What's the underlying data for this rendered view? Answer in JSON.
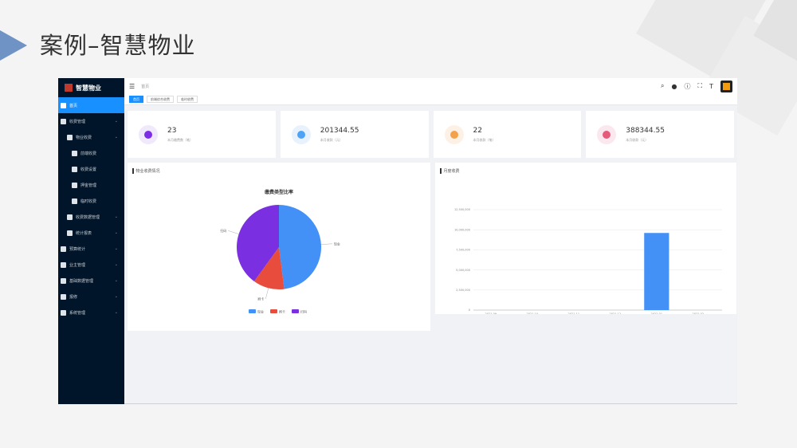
{
  "slide": {
    "title": "案例–智慧物业"
  },
  "app": {
    "logo_text": "智慧物业",
    "breadcrumb": "首页",
    "sidebar": [
      {
        "label": "首页",
        "icon": "home-icon",
        "level": 1,
        "active": true
      },
      {
        "label": "收费管理",
        "icon": "money-icon",
        "level": 1,
        "expandable": true
      },
      {
        "label": "物业收费",
        "icon": "cart-icon",
        "level": 2,
        "expandable": true
      },
      {
        "label": "前端收费",
        "icon": "scissors-icon",
        "level": 3
      },
      {
        "label": "收费设置",
        "icon": "document-icon",
        "level": 3
      },
      {
        "label": "押金管理",
        "icon": "document-icon",
        "level": 3
      },
      {
        "label": "临时收费",
        "icon": "document-icon",
        "level": 3
      },
      {
        "label": "收费数据管理",
        "icon": "grid-icon",
        "level": 2,
        "expandable": true
      },
      {
        "label": "统计报表",
        "icon": "monitor-icon",
        "level": 2,
        "expandable": true
      },
      {
        "label": "预算统计",
        "icon": "chart-icon",
        "level": 1,
        "expandable": true
      },
      {
        "label": "业主管理",
        "icon": "user-icon",
        "level": 1,
        "expandable": true
      },
      {
        "label": "基础数据管理",
        "icon": "database-icon",
        "level": 1,
        "expandable": true
      },
      {
        "label": "报修",
        "icon": "tool-icon",
        "level": 1,
        "expandable": true
      },
      {
        "label": "系统管理",
        "icon": "gear-icon",
        "level": 1,
        "expandable": true
      }
    ],
    "tags": [
      "首页",
      "前端综合收费",
      "临时收费"
    ],
    "cards": [
      {
        "value": "23",
        "label": "本月缴费数（笔）",
        "color": "#7b2ee6",
        "bg": "#f0e8fb"
      },
      {
        "value": "201344.55",
        "label": "本月收款（元）",
        "color": "#4fa3f7",
        "bg": "#e8f2fd"
      },
      {
        "value": "22",
        "label": "本月收款（笔）",
        "color": "#f3a24b",
        "bg": "#fdf1e6"
      },
      {
        "value": "388344.55",
        "label": "本月收款（元）",
        "color": "#e45b7c",
        "bg": "#fbe8ee"
      }
    ],
    "pie_panel": {
      "title": "物业收费情况"
    },
    "bar_panel": {
      "title": "月度收费"
    }
  },
  "chart_data": [
    {
      "type": "pie",
      "title": "缴费类型比率",
      "categories": [
        "现金",
        "刷卡",
        "扫码"
      ],
      "values": [
        48,
        12,
        40
      ],
      "colors": [
        "#4390f7",
        "#e74c3c",
        "#7a2fe0"
      ]
    },
    {
      "type": "bar",
      "categories": [
        "2021-09",
        "2021-10",
        "2021-11",
        "2021-12",
        "2022-01",
        "2022-02"
      ],
      "values": [
        0,
        0,
        0,
        0,
        9600000,
        0
      ],
      "y_ticks": [
        "0",
        "2,500,000",
        "5,000,000",
        "7,500,000",
        "10,000,000",
        "12,500,000"
      ],
      "ylim": [
        0,
        12500000
      ],
      "color": "#4390f7",
      "grid": true
    }
  ]
}
